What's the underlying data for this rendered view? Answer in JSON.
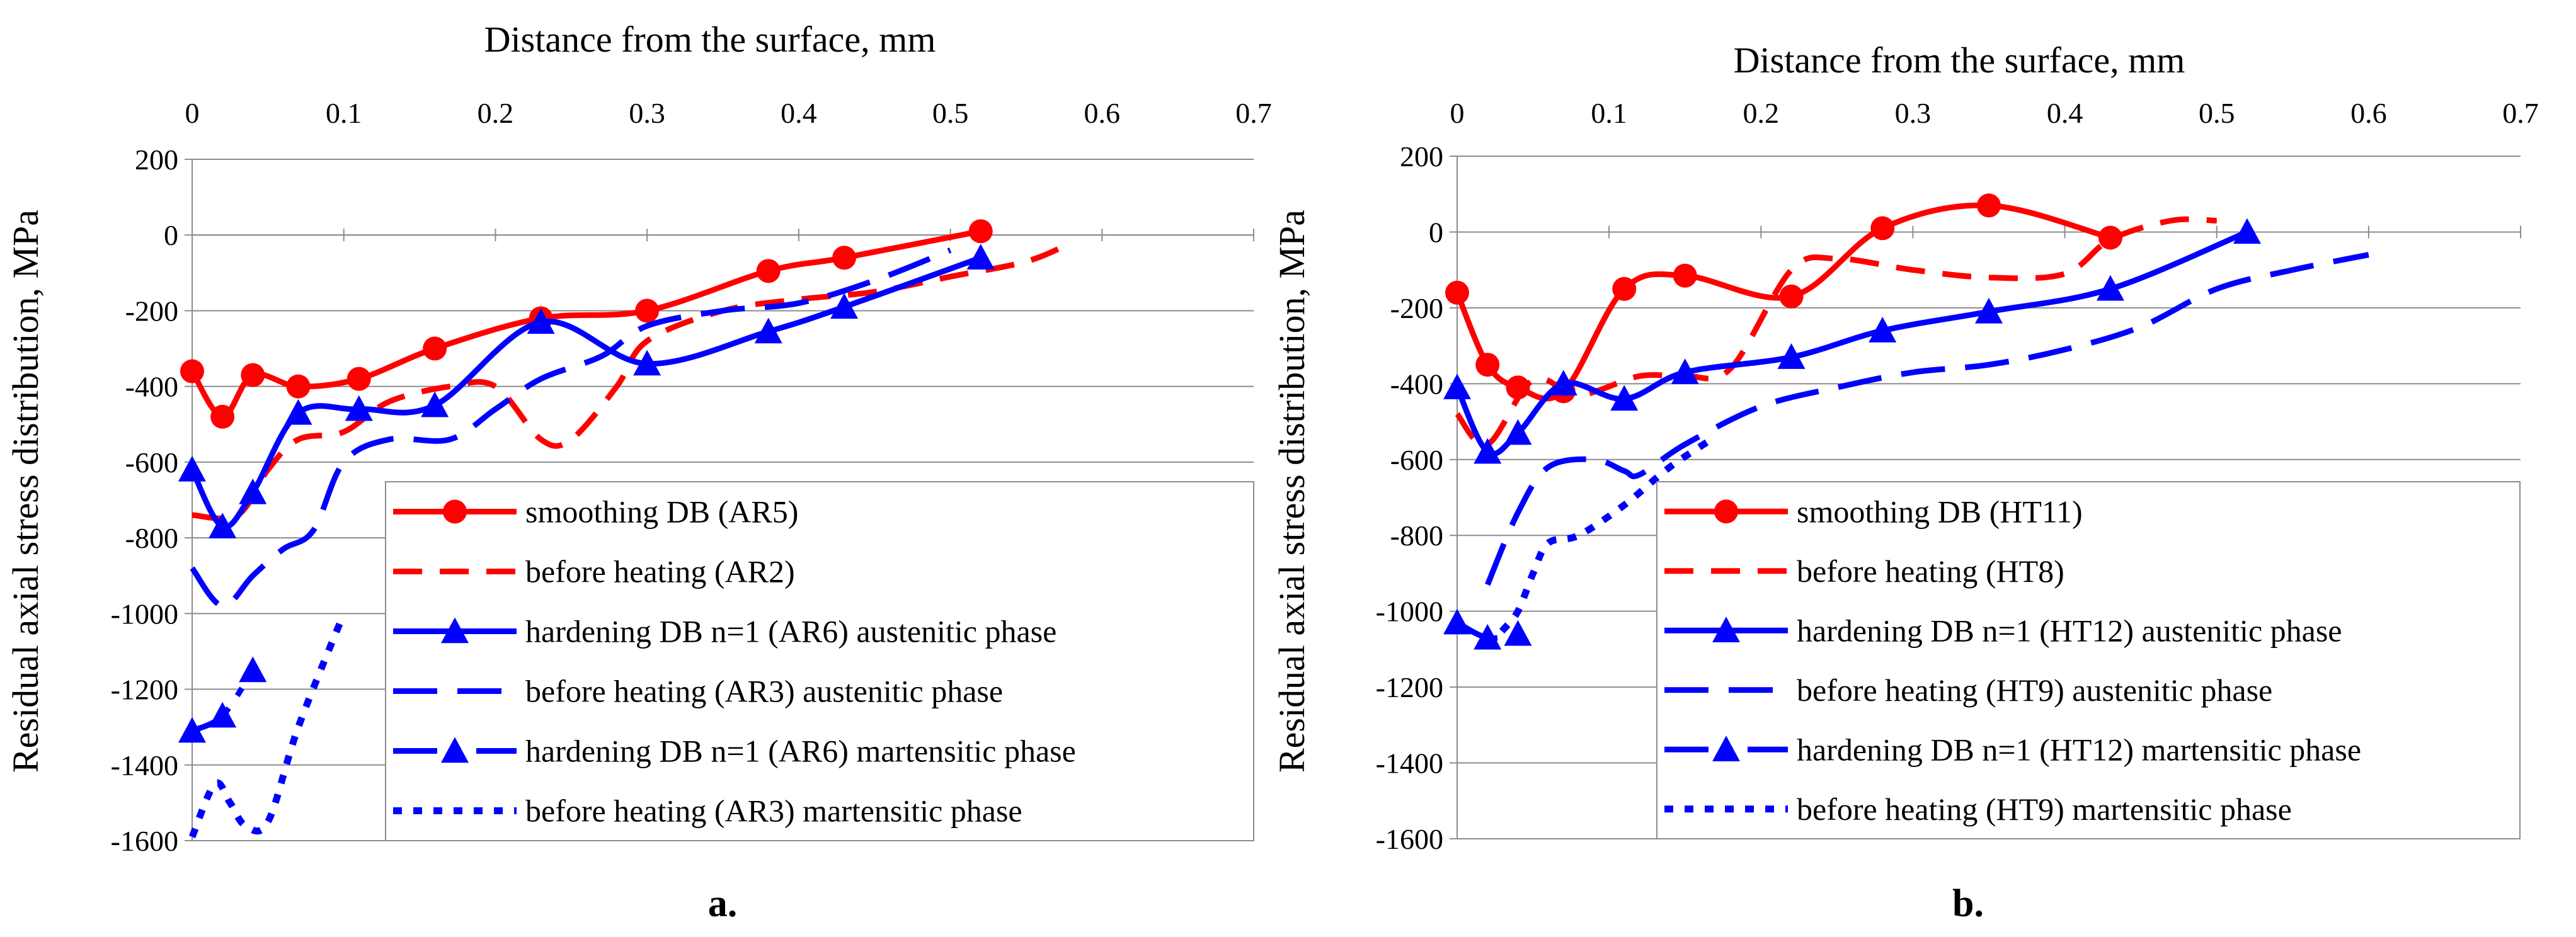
{
  "colors": {
    "red": "#ff0000",
    "blue": "#0000ff"
  },
  "chart_data": [
    {
      "type": "line",
      "panel_label": "a.",
      "xlabel": "Distance from the surface, mm",
      "ylabel": "Residual axial stress distribution, MPa",
      "xlim": [
        0,
        0.7
      ],
      "ylim": [
        -1600,
        200
      ],
      "x_ticks": [
        "0",
        "0.1",
        "0.2",
        "0.3",
        "0.4",
        "0.5",
        "0.6",
        "0.7"
      ],
      "y_ticks": [
        "200",
        "0",
        "-200",
        "-400",
        "-600",
        "-800",
        "-1000",
        "-1200",
        "-1400",
        "-1600"
      ],
      "grid": "horizontal",
      "legend_position": "bottom-right",
      "series": [
        {
          "name": "smoothing DB (AR5)",
          "color": "red",
          "style": "solid",
          "marker": "circle",
          "x": [
            0,
            0.02,
            0.04,
            0.07,
            0.11,
            0.16,
            0.23,
            0.3,
            0.38,
            0.43,
            0.52
          ],
          "y": [
            -360,
            -480,
            -370,
            -400,
            -380,
            -300,
            -220,
            -200,
            -95,
            -60,
            10
          ]
        },
        {
          "name": "before heating (AR2)",
          "color": "red",
          "style": "dash",
          "marker": "none",
          "x": [
            0,
            0.03,
            0.05,
            0.07,
            0.1,
            0.13,
            0.17,
            0.2,
            0.23,
            0.25,
            0.28,
            0.3,
            0.35,
            0.4,
            0.45,
            0.5,
            0.55,
            0.58
          ],
          "y": [
            -740,
            -740,
            -620,
            -540,
            -520,
            -440,
            -400,
            -400,
            -540,
            -540,
            -400,
            -280,
            -200,
            -170,
            -150,
            -110,
            -70,
            -20
          ]
        },
        {
          "name": "hardening DB n=1 (AR6) austenitic phase",
          "color": "blue",
          "style": "solid",
          "marker": "triangle",
          "x": [
            0,
            0.02,
            0.04,
            0.07,
            0.11,
            0.16,
            0.23,
            0.3,
            0.38,
            0.43,
            0.52
          ],
          "y": [
            -620,
            -770,
            -680,
            -470,
            -460,
            -450,
            -230,
            -340,
            -255,
            -190,
            -60
          ]
        },
        {
          "name": "before heating (AR3) austenitic phase",
          "color": "blue",
          "style": "longdash",
          "marker": "none",
          "x": [
            0,
            0.02,
            0.04,
            0.06,
            0.08,
            0.1,
            0.13,
            0.17,
            0.2,
            0.23,
            0.27,
            0.3,
            0.35,
            0.4,
            0.45,
            0.5
          ],
          "y": [
            -880,
            -980,
            -900,
            -830,
            -780,
            -600,
            -540,
            -540,
            -460,
            -380,
            -320,
            -240,
            -200,
            -180,
            -120,
            -40
          ]
        },
        {
          "name": "hardening DB n=1 (AR6) martensitic phase",
          "color": "blue",
          "style": "dashdot",
          "marker": "triangle",
          "x": [
            0,
            0.02,
            0.04
          ],
          "y": [
            -1310,
            -1270,
            -1150
          ]
        },
        {
          "name": "before heating (AR3) martensitic phase",
          "color": "blue",
          "style": "dot",
          "marker": "none",
          "x": [
            0,
            0.015,
            0.025,
            0.035,
            0.05,
            0.07,
            0.1
          ],
          "y": [
            -1590,
            -1450,
            -1500,
            -1560,
            -1550,
            -1300,
            -1000
          ]
        }
      ]
    },
    {
      "type": "line",
      "panel_label": "b.",
      "xlabel": "Distance from the surface, mm",
      "ylabel": "Residual axial stress distribution, MPa",
      "xlim": [
        0,
        0.7
      ],
      "ylim": [
        -1600,
        200
      ],
      "x_ticks": [
        "0",
        "0.1",
        "0.2",
        "0.3",
        "0.4",
        "0.5",
        "0.6",
        "0.7"
      ],
      "y_ticks": [
        "200",
        "0",
        "-200",
        "-400",
        "-600",
        "-800",
        "-1000",
        "-1200",
        "-1400",
        "-1600"
      ],
      "grid": "horizontal",
      "legend_position": "bottom-right",
      "series": [
        {
          "name": "smoothing DB (HT11)",
          "color": "red",
          "style": "solid",
          "marker": "circle",
          "x": [
            0,
            0.02,
            0.04,
            0.07,
            0.11,
            0.15,
            0.22,
            0.28,
            0.35,
            0.43
          ],
          "y": [
            -160,
            -350,
            -410,
            -420,
            -150,
            -115,
            -170,
            10,
            70,
            -15
          ]
        },
        {
          "name": "before heating (HT8)",
          "color": "red",
          "style": "dash",
          "marker": "none",
          "x": [
            0,
            0.02,
            0.05,
            0.08,
            0.12,
            0.15,
            0.18,
            0.22,
            0.25,
            0.3,
            0.35,
            0.4,
            0.43,
            0.47,
            0.5
          ],
          "y": [
            -480,
            -560,
            -390,
            -430,
            -380,
            -380,
            -360,
            -100,
            -70,
            -100,
            -120,
            -110,
            -20,
            30,
            30
          ]
        },
        {
          "name": "hardening DB n=1 (HT12) austenitic phase",
          "color": "blue",
          "style": "solid",
          "marker": "triangle",
          "x": [
            0,
            0.02,
            0.04,
            0.07,
            0.11,
            0.15,
            0.22,
            0.28,
            0.35,
            0.43,
            0.52
          ],
          "y": [
            -410,
            -580,
            -530,
            -400,
            -440,
            -370,
            -330,
            -260,
            -210,
            -150,
            0
          ]
        },
        {
          "name": "before heating (HT9) austenitic phase",
          "color": "blue",
          "style": "longdash",
          "marker": "none",
          "x": [
            0.02,
            0.04,
            0.06,
            0.09,
            0.11,
            0.12,
            0.15,
            0.2,
            0.25,
            0.3,
            0.35,
            0.4,
            0.45,
            0.5,
            0.55,
            0.6
          ],
          "y": [
            -930,
            -740,
            -620,
            -600,
            -630,
            -640,
            -560,
            -460,
            -410,
            -370,
            -350,
            -310,
            -250,
            -150,
            -100,
            -60
          ]
        },
        {
          "name": "hardening DB n=1 (HT12) martensitic phase",
          "color": "blue",
          "style": "dashdot",
          "marker": "triangle",
          "x": [
            0,
            0.02,
            0.04
          ],
          "y": [
            -1030,
            -1070,
            -1060
          ]
        },
        {
          "name": "before heating (HT9) martensitic phase",
          "color": "blue",
          "style": "dot",
          "marker": "none",
          "x": [
            0.02,
            0.03,
            0.04,
            0.05,
            0.06,
            0.08,
            0.11,
            0.14,
            0.17
          ],
          "y": [
            -1090,
            -1050,
            -1000,
            -900,
            -820,
            -800,
            -720,
            -620,
            -540
          ]
        }
      ]
    }
  ]
}
